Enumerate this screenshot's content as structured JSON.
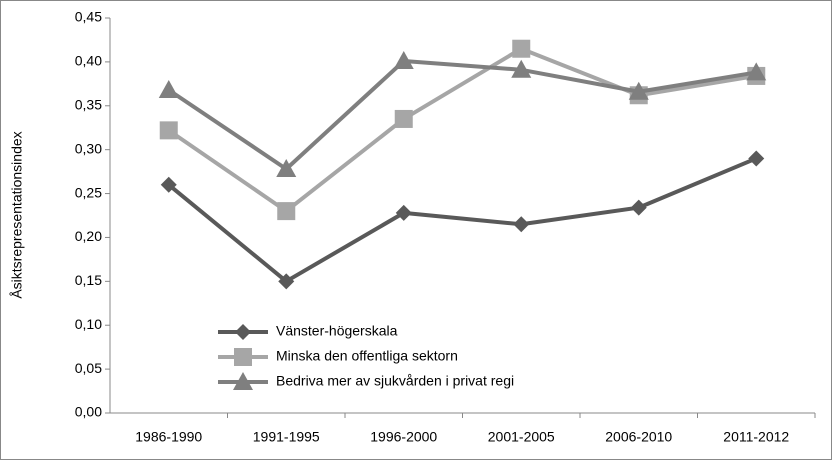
{
  "chart_data": {
    "type": "line",
    "ylabel": "Åsiktsrepresentationsindex",
    "categories": [
      "1986-1990",
      "1991-1995",
      "1996-2000",
      "2001-2005",
      "2006-2010",
      "2011-2012"
    ],
    "series": [
      {
        "name": "Vänster-högerskala",
        "color": "#595959",
        "marker": "diamond",
        "values": [
          0.26,
          0.15,
          0.228,
          0.215,
          0.234,
          0.29
        ]
      },
      {
        "name": "Minska den offentliga sektorn",
        "color": "#a6a6a6",
        "marker": "square",
        "values": [
          0.322,
          0.23,
          0.335,
          0.415,
          0.362,
          0.384
        ]
      },
      {
        "name": "Bedriva mer av sjukvården i privat regi",
        "color": "#7f7f7f",
        "marker": "triangle",
        "values": [
          0.368,
          0.278,
          0.401,
          0.391,
          0.366,
          0.388
        ]
      }
    ],
    "ylim": [
      0,
      0.45
    ],
    "yticks": [
      {
        "value": 0,
        "label": "0,00"
      },
      {
        "value": 0.05,
        "label": "0,05"
      },
      {
        "value": 0.1,
        "label": "0,10"
      },
      {
        "value": 0.15,
        "label": "0,15"
      },
      {
        "value": 0.2,
        "label": "0,20"
      },
      {
        "value": 0.25,
        "label": "0,25"
      },
      {
        "value": 0.3,
        "label": "0,30"
      },
      {
        "value": 0.35,
        "label": "0,35"
      },
      {
        "value": 0.4,
        "label": "0,40"
      },
      {
        "value": 0.45,
        "label": "0,45"
      }
    ],
    "grid": false,
    "legend": "lower-left"
  }
}
